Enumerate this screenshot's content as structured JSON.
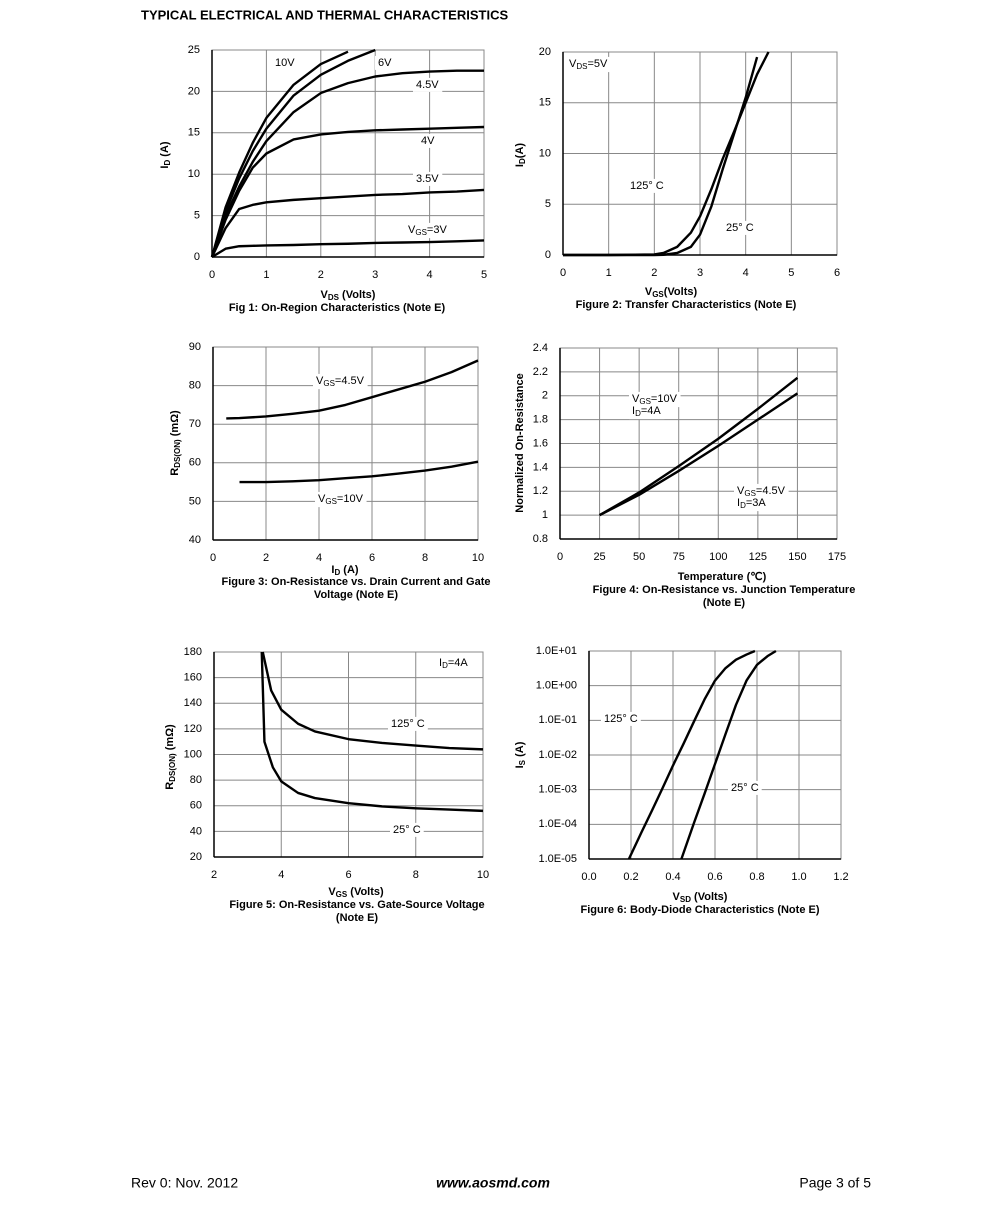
{
  "page": {
    "heading": "TYPICAL ELECTRICAL AND THERMAL CHARACTERISTICS",
    "footer_left": "Rev 0: Nov. 2012",
    "footer_center": "www.aosmd.com",
    "footer_right": "Page 3 of 5"
  },
  "chart_data": [
    {
      "type": "line",
      "title": [
        "Fig 1: On-Region Characteristics (Note E)"
      ],
      "xlabel": [
        "V",
        "DS",
        " (Volts)"
      ],
      "ylabel": [
        "I",
        "D",
        " (A)"
      ],
      "x": [
        0,
        0.25,
        0.5,
        0.75,
        1,
        1.5,
        2,
        2.5,
        3,
        3.5,
        4,
        4.5,
        5
      ],
      "xlim": [
        0,
        5
      ],
      "xticks": [
        0,
        1,
        2,
        3,
        4,
        5
      ],
      "ylim": [
        0,
        25
      ],
      "yticks": [
        0,
        5,
        10,
        15,
        20,
        25
      ],
      "grid": true,
      "series": [
        {
          "name": [
            "10V"
          ],
          "color": "#000000",
          "values": [
            0,
            6,
            10.2,
            13.8,
            16.8,
            20.8,
            23.3,
            24.8,
            null,
            null,
            null,
            null,
            null
          ]
        },
        {
          "name": [
            "6V"
          ],
          "color": "#000000",
          "values": [
            0,
            5.5,
            9.5,
            12.8,
            15.5,
            19.5,
            22,
            23.7,
            25,
            null,
            null,
            null,
            null
          ]
        },
        {
          "name": [
            "4.5V"
          ],
          "color": "#000000",
          "values": [
            0,
            5,
            8.5,
            11.5,
            14,
            17.5,
            19.8,
            21,
            21.8,
            22.2,
            22.4,
            22.5,
            22.5
          ]
        },
        {
          "name": [
            "4V"
          ],
          "color": "#000000",
          "values": [
            0,
            4.5,
            8,
            10.8,
            12.5,
            14.2,
            14.8,
            15.1,
            15.3,
            15.4,
            15.5,
            15.6,
            15.7
          ]
        },
        {
          "name": [
            "3.5V"
          ],
          "color": "#000000",
          "values": [
            0,
            3.5,
            5.8,
            6.3,
            6.6,
            6.9,
            7.1,
            7.3,
            7.5,
            7.6,
            7.8,
            7.9,
            8.1
          ]
        },
        {
          "name": [
            "V",
            "GS",
            "=3V"
          ],
          "color": "#000000",
          "values": [
            0,
            1,
            1.3,
            1.35,
            1.4,
            1.45,
            1.55,
            1.6,
            1.7,
            1.75,
            1.8,
            1.9,
            2
          ]
        }
      ]
    },
    {
      "type": "line",
      "title": [
        "Figure 2: Transfer Characteristics (Note E)"
      ],
      "xlabel": [
        "V",
        "GS",
        "(Volts)"
      ],
      "ylabel": [
        "I",
        "D",
        "(A)"
      ],
      "annotation": [
        "V",
        "DS",
        "=5V"
      ],
      "x": [
        0,
        1,
        2,
        2.2,
        2.5,
        2.8,
        3,
        3.25,
        3.5,
        3.75,
        4,
        4.25,
        4.5
      ],
      "xlim": [
        0,
        6
      ],
      "xticks": [
        0,
        1,
        2,
        3,
        4,
        5,
        6
      ],
      "ylim": [
        0,
        20
      ],
      "yticks": [
        0,
        5,
        10,
        15,
        20
      ],
      "grid": true,
      "series": [
        {
          "name": [
            "125° C"
          ],
          "color": "#000000",
          "values": [
            0,
            0,
            0.05,
            0.2,
            0.8,
            2.2,
            3.8,
            6.5,
            9.5,
            12.2,
            15,
            17.8,
            20
          ]
        },
        {
          "name": [
            "25° C"
          ],
          "color": "#000000",
          "values": [
            0,
            0,
            0,
            0.02,
            0.2,
            0.8,
            2,
            4.8,
            8.5,
            12,
            15.5,
            19.5,
            null
          ]
        }
      ]
    },
    {
      "type": "line",
      "title": [
        "Figure 3: On-Resistance vs. Drain Current and Gate",
        "Voltage (Note E)"
      ],
      "xlabel": [
        "I",
        "D",
        " (A)"
      ],
      "ylabel": [
        "R",
        "DS(ON)",
        " (mΩ)"
      ],
      "x": [
        0.5,
        1,
        2,
        3,
        4,
        5,
        6,
        7,
        8,
        9,
        10
      ],
      "xlim": [
        0,
        10
      ],
      "xticks": [
        0,
        2,
        4,
        6,
        8,
        10
      ],
      "ylim": [
        40,
        90
      ],
      "yticks": [
        40,
        50,
        60,
        70,
        80,
        90
      ],
      "grid": true,
      "series": [
        {
          "name": [
            "V",
            "GS",
            "=4.5V"
          ],
          "color": "#000000",
          "values": [
            71.5,
            71.6,
            72,
            72.7,
            73.5,
            75,
            77,
            79,
            81,
            83.5,
            86.5
          ]
        },
        {
          "name": [
            "V",
            "GS",
            "=10V"
          ],
          "color": "#000000",
          "values": [
            null,
            55,
            55,
            55.2,
            55.5,
            56,
            56.5,
            57.2,
            58,
            59,
            60.3
          ]
        }
      ]
    },
    {
      "type": "line",
      "title": [
        "Figure 4: On-Resistance vs. Junction Temperature",
        "(Note E)"
      ],
      "xlabel": "Temperature (℃)",
      "ylabel": "Normalized On-Resistance",
      "x": [
        25,
        50,
        75,
        100,
        125,
        150
      ],
      "xlim": [
        0,
        175
      ],
      "xticks": [
        0,
        25,
        50,
        75,
        100,
        125,
        150,
        175
      ],
      "ylim": [
        0.8,
        2.4
      ],
      "yticks": [
        0.8,
        1,
        1.2,
        1.4,
        1.6,
        1.8,
        2,
        2.2,
        2.4
      ],
      "grid": true,
      "series": [
        {
          "name": [
            [
              "V",
              "GS",
              "=10V"
            ],
            [
              "I",
              "D",
              "=4A"
            ]
          ],
          "color": "#000000",
          "values": [
            1,
            1.19,
            1.41,
            1.64,
            1.89,
            2.15
          ]
        },
        {
          "name": [
            [
              "V",
              "GS",
              "=4.5V"
            ],
            [
              "I",
              "D",
              "=3A"
            ]
          ],
          "color": "#000000",
          "values": [
            1,
            1.17,
            1.37,
            1.58,
            1.8,
            2.02
          ]
        }
      ]
    },
    {
      "type": "line",
      "title": [
        "Figure 5: On-Resistance vs. Gate-Source Voltage",
        "(Note E)"
      ],
      "xlabel": [
        "V",
        "GS",
        " (Volts)"
      ],
      "ylabel": [
        "R",
        "DS(ON)",
        " (mΩ)"
      ],
      "annotation": [
        "I",
        "D",
        "=4A"
      ],
      "xlim": [
        2,
        10
      ],
      "xticks": [
        2,
        4,
        6,
        8,
        10
      ],
      "ylim": [
        20,
        180
      ],
      "yticks": [
        20,
        40,
        60,
        80,
        100,
        120,
        140,
        160,
        180
      ],
      "grid": true,
      "series": [
        {
          "name": [
            "125° C"
          ],
          "color": "#000000",
          "x": [
            3.45,
            3.7,
            4,
            4.5,
            5,
            6,
            7,
            8,
            9,
            10
          ],
          "values": [
            180,
            150,
            135,
            124,
            118,
            112,
            109,
            107,
            105,
            104
          ]
        },
        {
          "name": [
            "25° C"
          ],
          "color": "#000000",
          "x": [
            3.42,
            3.5,
            3.75,
            4,
            4.5,
            5,
            6,
            7,
            8,
            9,
            10
          ],
          "values": [
            180,
            110,
            90,
            79,
            70,
            66,
            62,
            59.5,
            58,
            57,
            56
          ]
        }
      ]
    },
    {
      "type": "line",
      "title": [
        "Figure 6: Body-Diode Characteristics (Note E)"
      ],
      "xlabel": [
        "V",
        "SD",
        " (Volts)"
      ],
      "ylabel": [
        "I",
        "S",
        " (A)"
      ],
      "log_y": true,
      "xlim": [
        0,
        1.2
      ],
      "xticks": [
        {
          "value": 0,
          "label": "0.0"
        },
        0.2,
        0.4,
        0.6,
        0.8,
        {
          "value": 1,
          "label": "1.0"
        },
        1.2
      ],
      "ylim": [
        1e-05,
        10
      ],
      "yticks": [
        {
          "value": 1e-05,
          "label": "1.0E-05"
        },
        {
          "value": 0.0001,
          "label": "1.0E-04"
        },
        {
          "value": 0.001,
          "label": "1.0E-03"
        },
        {
          "value": 0.01,
          "label": "1.0E-02"
        },
        {
          "value": 0.1,
          "label": "1.0E-01"
        },
        {
          "value": 1,
          "label": "1.0E+00"
        },
        {
          "value": 10,
          "label": "1.0E+01"
        }
      ],
      "grid": true,
      "series": [
        {
          "name": [
            "125° C"
          ],
          "color": "#000000",
          "x": [
            0.19,
            0.25,
            0.3,
            0.35,
            0.4,
            0.45,
            0.5,
            0.55,
            0.6,
            0.65,
            0.7,
            0.75,
            0.79
          ],
          "values": [
            1e-05,
            5.9e-05,
            0.00025,
            0.0011,
            0.005,
            0.021,
            0.093,
            0.4,
            1.4,
            3.2,
            5.6,
            7.9,
            10
          ]
        },
        {
          "name": [
            "25° C"
          ],
          "color": "#000000",
          "x": [
            0.44,
            0.5,
            0.55,
            0.6,
            0.65,
            0.7,
            0.75,
            0.8,
            0.85,
            0.89
          ],
          "values": [
            1e-05,
            0.00011,
            0.00076,
            0.0055,
            0.04,
            0.28,
            1.4,
            4,
            7.1,
            10
          ]
        }
      ]
    }
  ]
}
